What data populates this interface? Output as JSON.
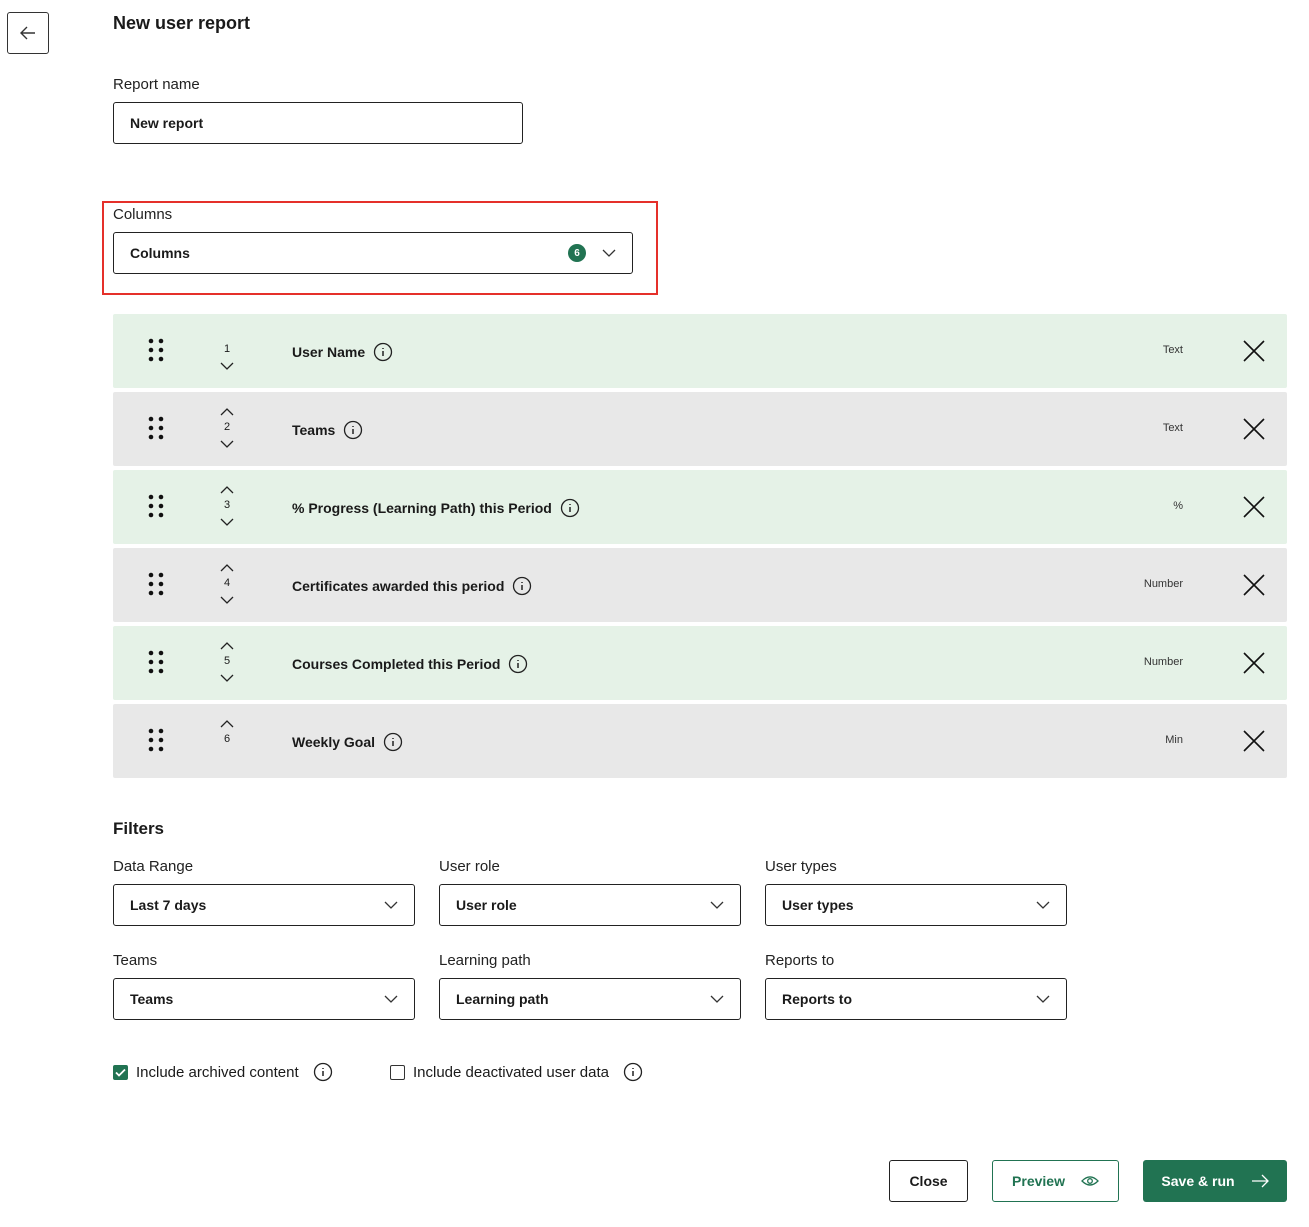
{
  "header": {
    "title": "New user report"
  },
  "report_name": {
    "label": "Report name",
    "value": "New report"
  },
  "columns": {
    "label": "Columns",
    "select_value": "Columns",
    "count": "6",
    "items": [
      {
        "index": "1",
        "name": "User Name",
        "type": "Text"
      },
      {
        "index": "2",
        "name": "Teams",
        "type": "Text"
      },
      {
        "index": "3",
        "name": "% Progress (Learning Path) this Period",
        "type": "%"
      },
      {
        "index": "4",
        "name": "Certificates awarded this period",
        "type": "Number"
      },
      {
        "index": "5",
        "name": "Courses Completed this Period",
        "type": "Number"
      },
      {
        "index": "6",
        "name": "Weekly Goal",
        "type": "Min"
      }
    ]
  },
  "filters": {
    "title": "Filters",
    "items": [
      {
        "label": "Data Range",
        "value": "Last 7 days"
      },
      {
        "label": "User role",
        "value": "User role"
      },
      {
        "label": "User types",
        "value": "User types"
      },
      {
        "label": "Teams",
        "value": "Teams"
      },
      {
        "label": "Learning path",
        "value": "Learning path"
      },
      {
        "label": "Reports to",
        "value": "Reports to"
      }
    ]
  },
  "options": {
    "archived": {
      "label": "Include archived content",
      "checked": true
    },
    "deactivated": {
      "label": "Include deactivated user data",
      "checked": false
    }
  },
  "buttons": {
    "close": "Close",
    "preview": "Preview",
    "save": "Save & run"
  },
  "colors": {
    "accent": "#217352",
    "highlight": "#e5302a",
    "row_green": "#e5f2e7",
    "row_gray": "#e8e8e8"
  }
}
